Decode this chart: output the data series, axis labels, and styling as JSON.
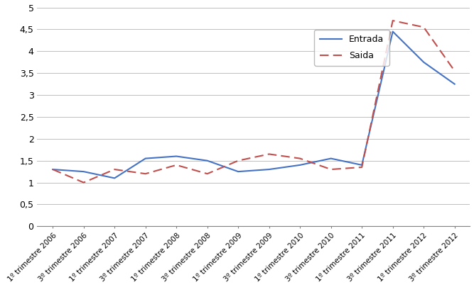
{
  "labels": [
    "1º trimestre 2006",
    "3º trimestre 2006",
    "1º trimestre 2007",
    "3º trimestre 2007",
    "1º trimestre 2008",
    "3º trimestre 2008",
    "1º trimestre 2009",
    "3º trimestre 2009",
    "1º trimestre 2010",
    "3º trimestre 2010",
    "1º trimestre 2011",
    "3º trimestre 2011",
    "1º trimestre 2012",
    "3º trimestre 2012"
  ],
  "entrada_vals": [
    1.3,
    1.25,
    1.1,
    1.55,
    1.6,
    1.5,
    1.25,
    1.3,
    1.4,
    1.55,
    1.4,
    4.45,
    3.75,
    3.25
  ],
  "saida_vals": [
    1.3,
    1.0,
    1.3,
    1.2,
    1.4,
    1.2,
    1.5,
    1.65,
    1.55,
    1.3,
    1.35,
    4.7,
    4.55,
    3.55
  ],
  "ylim": [
    0,
    5
  ],
  "yticks": [
    0,
    0.5,
    1.0,
    1.5,
    2.0,
    2.5,
    3.0,
    3.5,
    4.0,
    4.5,
    5.0
  ],
  "ytick_labels": [
    "0",
    "0,5",
    "1",
    "1,5",
    "2",
    "2,5",
    "3",
    "3,5",
    "4",
    "4,5",
    "5"
  ],
  "entrada_color": "#4472C4",
  "saida_color": "#C0504D",
  "background_color": "#FFFFFF",
  "legend_entrada": "Entrada",
  "legend_saida": "Saida",
  "grid_color": "#BFBFBF"
}
